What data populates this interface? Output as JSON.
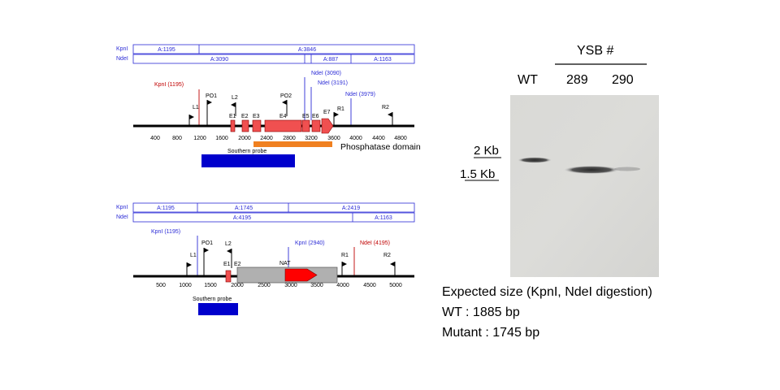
{
  "colors": {
    "enzyme_blue": "#2b2bd6",
    "enzyme_red": "#c00000",
    "exon_red": "#f05050",
    "probe_blue": "#0000cc",
    "domain_orange": "#f08020",
    "nat_gray": "#b0b0b0",
    "nat_red": "#ff0000"
  },
  "wt_map": {
    "enzymes": [
      "KpnI",
      "NdeI"
    ],
    "kpn_fragments": [
      "A:1195",
      "A:3846"
    ],
    "nde_fragments": [
      "A:3090",
      "A:887",
      "A:1163"
    ],
    "sites": [
      {
        "label": "KpnI (1195)",
        "color": "red"
      },
      {
        "label": "NdeI (3090)",
        "color": "blue"
      },
      {
        "label": "NdeI (3191)",
        "color": "blue"
      },
      {
        "label": "NdeI (3979)",
        "color": "blue"
      }
    ],
    "primers": [
      "L1",
      "PO1",
      "L2",
      "PO2",
      "R1",
      "R2"
    ],
    "exons": [
      "E1",
      "E2",
      "E3",
      "E4",
      "E5",
      "E6",
      "E7"
    ],
    "ticks": [
      "400",
      "800",
      "1200",
      "1600",
      "2000",
      "2400",
      "2800",
      "3200",
      "3600",
      "4000",
      "4400",
      "4800"
    ],
    "domain_label": "Phosphatase domain",
    "probe_label": "Southern probe"
  },
  "mut_map": {
    "enzymes": [
      "KpnI",
      "NdeI"
    ],
    "kpn_fragments": [
      "A:1195",
      "A:1745",
      "A:2419"
    ],
    "nde_fragments": [
      "A:4195",
      "A:1163"
    ],
    "sites": [
      {
        "label": "KpnI (1195)",
        "color": "blue"
      },
      {
        "label": "KpnI (2940)",
        "color": "blue"
      },
      {
        "label": "NdeI (4195)",
        "color": "red"
      }
    ],
    "primers": [
      "L1",
      "PO1",
      "L2",
      "R1",
      "R2"
    ],
    "exons": [
      "E1",
      "E2"
    ],
    "cassette_label": "NAT",
    "ticks": [
      "500",
      "1000",
      "1500",
      "2000",
      "2500",
      "3000",
      "3500",
      "4000",
      "4500",
      "5000"
    ],
    "probe_label": "Southern probe"
  },
  "blot": {
    "group_label": "YSB #",
    "lanes": [
      "WT",
      "289",
      "290"
    ],
    "markers": [
      "2 Kb",
      "1.5 Kb"
    ]
  },
  "expected": {
    "title": "Expected size (KpnI, NdeI digestion)",
    "lines": [
      "WT : 1885 bp",
      "Mutant : 1745 bp"
    ]
  }
}
